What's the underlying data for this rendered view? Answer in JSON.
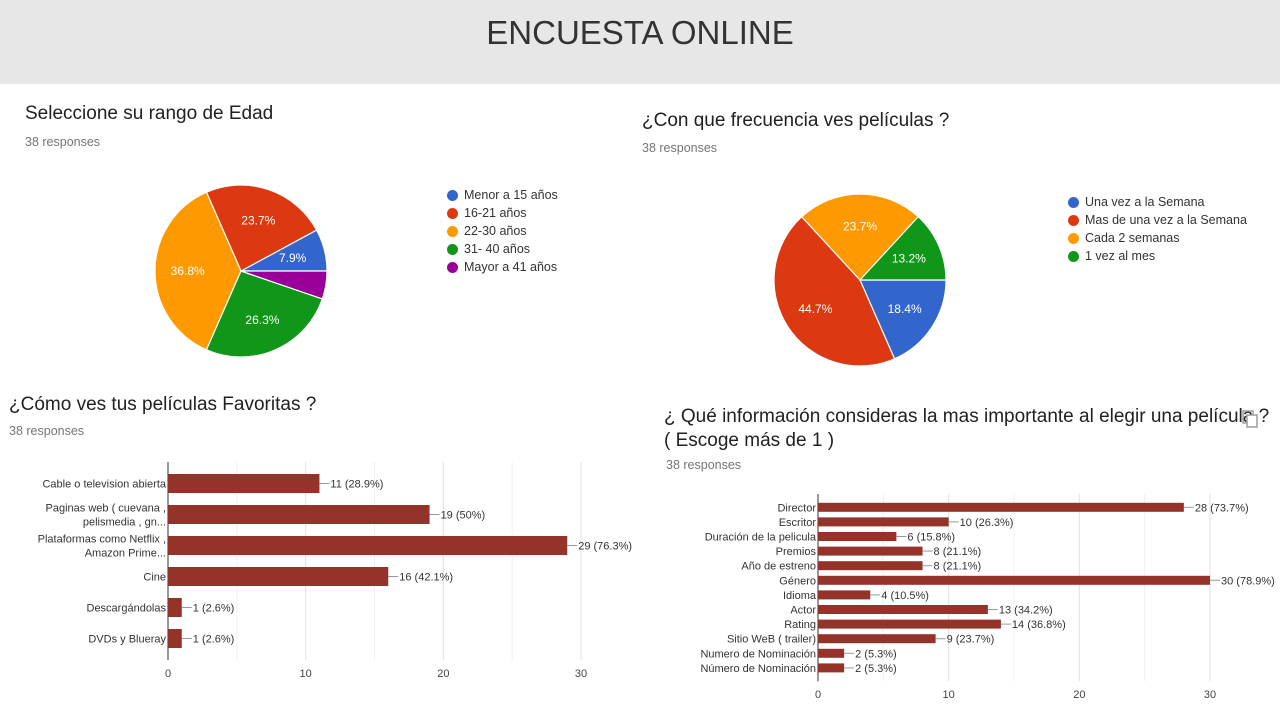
{
  "header": {
    "title": "ENCUESTA ONLINE"
  },
  "panels": [
    {
      "title": "Seleccione su rango de Edad",
      "responses": "38 responses"
    },
    {
      "title": "¿Con que frecuencia ves películas ?",
      "responses": "38 responses"
    },
    {
      "title": "¿Cómo ves tus películas Favoritas ?",
      "responses": "38 responses"
    },
    {
      "title_line1": "¿ Qué información consideras la mas importante al elegir una película ?",
      "title_line2": "( Escoge más de 1 )",
      "responses": "38 responses"
    }
  ],
  "chart_data": [
    {
      "type": "pie",
      "title": "Seleccione su rango de Edad",
      "start": "3 o'clock, counter-clockwise",
      "slices": [
        {
          "label": "Menor a 15 años",
          "value": 3,
          "percent_label": "7.9%",
          "color": "#3366cc"
        },
        {
          "label": "16-21 años",
          "value": 9,
          "percent_label": "23.7%",
          "color": "#dc3912"
        },
        {
          "label": "22-30 años",
          "value": 14,
          "percent_label": "36.8%",
          "color": "#ff9900"
        },
        {
          "label": "31- 40 años",
          "value": 10,
          "percent_label": "26.3%",
          "color": "#109618"
        },
        {
          "label": "Mayor a 41 años",
          "value": 2,
          "percent_label": "",
          "color": "#990099"
        }
      ],
      "legend_position": "right"
    },
    {
      "type": "pie",
      "title": "¿Con que frecuencia ves películas ?",
      "start": "3 o'clock, clockwise",
      "slices": [
        {
          "label": "Una vez a la Semana",
          "value": 7,
          "percent_label": "18.4%",
          "color": "#3366cc"
        },
        {
          "label": "Mas de una vez a la Semana",
          "value": 17,
          "percent_label": "44.7%",
          "color": "#dc3912"
        },
        {
          "label": "Cada 2 semanas",
          "value": 9,
          "percent_label": "23.7%",
          "color": "#ff9900"
        },
        {
          "label": "1 vez al mes",
          "value": 5,
          "percent_label": "13.2%",
          "color": "#109618"
        }
      ],
      "legend_position": "right"
    },
    {
      "type": "bar",
      "orientation": "horizontal",
      "title": "¿Cómo ves tus películas Favoritas ?",
      "categories": [
        [
          "Cable o television abierta"
        ],
        [
          "Paginas web ( cuevana ,",
          "pelismedia , gn..."
        ],
        [
          "Plataformas como Netflix ,",
          "Amazon Prime..."
        ],
        [
          "Cine"
        ],
        [
          "Descargándolas"
        ],
        [
          "DVDs y Blueray"
        ]
      ],
      "values": [
        11,
        19,
        29,
        16,
        1,
        1
      ],
      "value_labels": [
        "11 (28.9%)",
        "19 (50%)",
        "29 (76.3%)",
        "16 (42.1%)",
        "1 (2.6%)",
        "1 (2.6%)"
      ],
      "xlim": [
        0,
        30
      ],
      "xticks": [
        "0",
        "10",
        "20",
        "30"
      ],
      "bar_color": "#93332a",
      "grid": true
    },
    {
      "type": "bar",
      "orientation": "horizontal",
      "title": "¿ Qué información consideras la mas importante al elegir una película ? ( Escoge más de 1 )",
      "categories": [
        "Director",
        "Escritor",
        "Duración de la pelicula",
        "Premios",
        "Año de estreno",
        "Género",
        "Idioma",
        "Actor",
        "Rating",
        "Sitio WeB ( trailer)",
        "Numero de Nominación",
        "Número de Nominación"
      ],
      "values": [
        28,
        10,
        6,
        8,
        8,
        30,
        4,
        13,
        14,
        9,
        2,
        2
      ],
      "value_labels": [
        "28 (73.7%)",
        "10 (26.3%)",
        "6 (15.8%)",
        "8 (21.1%)",
        "8 (21.1%)",
        "30 (78.9%)",
        "4 (10.5%)",
        "13 (34.2%)",
        "14 (36.8%)",
        "9 (23.7%)",
        "2 (5.3%)",
        "2 (5.3%)"
      ],
      "xlim": [
        0,
        30
      ],
      "xticks": [
        "0",
        "10",
        "20",
        "30"
      ],
      "bar_color": "#93332a",
      "grid": true
    }
  ]
}
